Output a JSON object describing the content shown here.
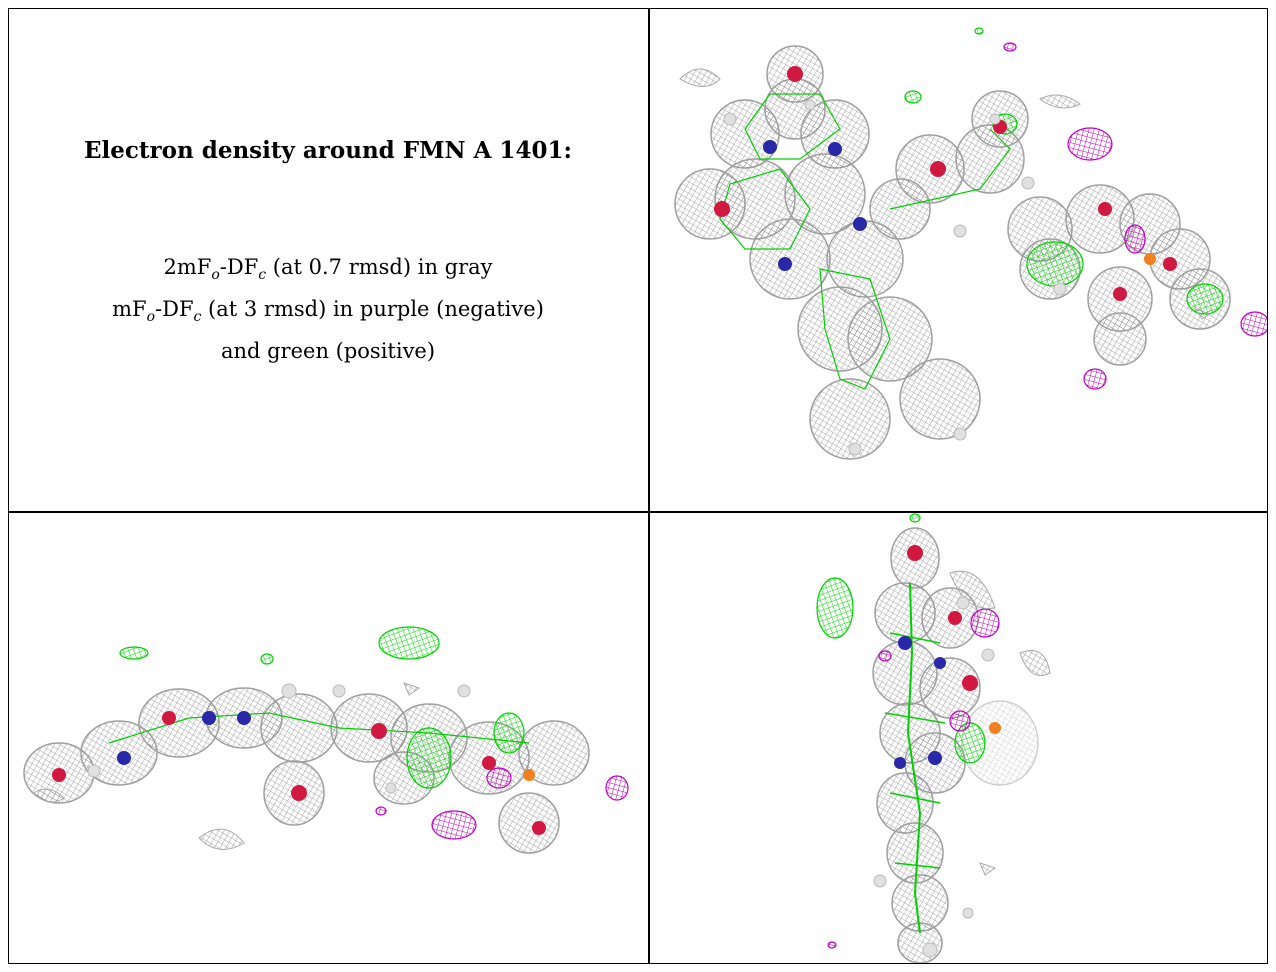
{
  "caption": {
    "title": "Electron density around FMN A 1401:",
    "line1": {
      "prefix": "2mF",
      "sub1": "o",
      "mid": "-DF",
      "sub2": "c",
      "suffix": " (at 0.7 rmsd) in gray"
    },
    "line2": {
      "prefix": "mF",
      "sub1": "o",
      "mid": "-DF",
      "sub2": "c",
      "suffix": " (at 3 rmsd) in purple (negative)"
    },
    "line3": "and green (positive)"
  },
  "colors": {
    "gray_mesh": "#9a9a9a",
    "negative_mesh": "#c000c0",
    "positive_mesh": "#00e000",
    "nitrogen": "#2828a8",
    "oxygen": "#d01840",
    "phosphorus": "#f08020",
    "hydrogen": "#e8e8e8"
  },
  "panels": [
    "top-view",
    "side-view",
    "end-view"
  ]
}
